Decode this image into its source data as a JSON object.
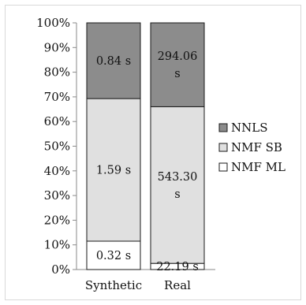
{
  "chart_data": {
    "type": "bar",
    "stacked": true,
    "normalized": true,
    "categories": [
      "Synthetic",
      "Real"
    ],
    "series": [
      {
        "name": "NMF ML",
        "color": "#ffffff",
        "values": [
          0.115,
          0.025
        ],
        "labels": [
          [
            "0.32 s"
          ],
          [
            "22.19 s"
          ]
        ]
      },
      {
        "name": "NMF SB",
        "color": "#e0e0e0",
        "values": [
          0.578,
          0.635
        ],
        "labels": [
          [
            "1.59 s"
          ],
          [
            "543.30",
            "s"
          ]
        ]
      },
      {
        "name": "NNLS",
        "color": "#8c8c8c",
        "values": [
          0.307,
          0.34
        ],
        "labels": [
          [
            "0.84 s"
          ],
          [
            "294.06",
            "s"
          ]
        ]
      }
    ],
    "yticks": [
      "0%",
      "10%",
      "20%",
      "30%",
      "40%",
      "50%",
      "60%",
      "70%",
      "80%",
      "90%",
      "100%"
    ],
    "ylim": [
      0,
      1
    ],
    "legend_order": [
      "NNLS",
      "NMF SB",
      "NMF ML"
    ],
    "legend_position": "right",
    "grid": false
  }
}
